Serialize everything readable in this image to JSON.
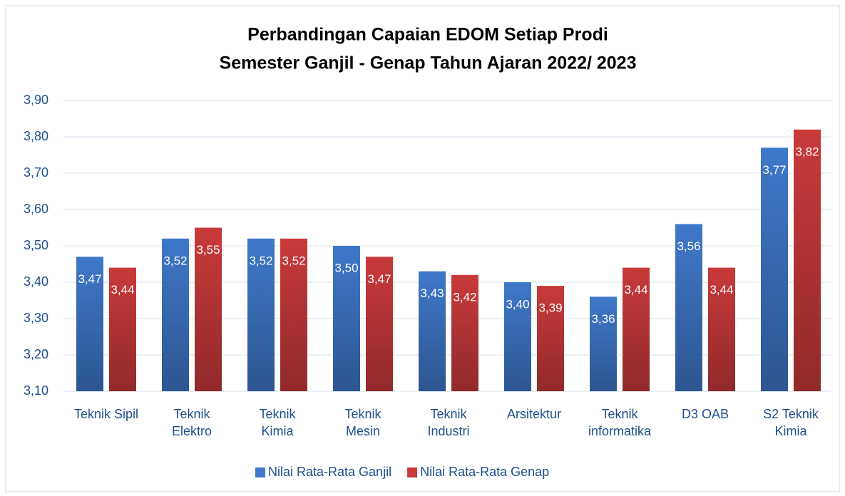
{
  "chart_data": {
    "type": "bar",
    "title": "Perbandingan Capaian EDOM Setiap Prodi",
    "subtitle": "Semester Ganjil - Genap Tahun Ajaran 2022/ 2023",
    "categories": [
      "Teknik Sipil",
      "Teknik\nElektro",
      "Teknik\nKimia",
      "Teknik\nMesin",
      "Teknik\nIndustri",
      "Arsitektur",
      "Teknik\ninformatika",
      "D3 OAB",
      "S2 Teknik\nKimia"
    ],
    "series": [
      {
        "name": "Nilai Rata-Rata Ganjil",
        "color": "#3f78c9",
        "values": [
          3.47,
          3.52,
          3.52,
          3.5,
          3.43,
          3.4,
          3.36,
          3.56,
          3.77
        ],
        "value_labels": [
          "3,47",
          "3,52",
          "3,52",
          "3,50",
          "3,43",
          "3,40",
          "3,36",
          "3,56",
          "3,77"
        ]
      },
      {
        "name": "Nilai Rata-Rata Genap",
        "color": "#c93a3a",
        "values": [
          3.44,
          3.55,
          3.52,
          3.47,
          3.42,
          3.39,
          3.44,
          3.44,
          3.82
        ],
        "value_labels": [
          "3,44",
          "3,55",
          "3,52",
          "3,47",
          "3,42",
          "3,39",
          "3,44",
          "3,44",
          "3,82"
        ]
      }
    ],
    "ylim": [
      3.1,
      3.9
    ],
    "yticks": [
      {
        "value": 3.1,
        "label": "3,10"
      },
      {
        "value": 3.2,
        "label": "3,20"
      },
      {
        "value": 3.3,
        "label": "3,30"
      },
      {
        "value": 3.4,
        "label": "3,40"
      },
      {
        "value": 3.5,
        "label": "3,50"
      },
      {
        "value": 3.6,
        "label": "3,60"
      },
      {
        "value": 3.7,
        "label": "3,70"
      },
      {
        "value": 3.8,
        "label": "3,80"
      },
      {
        "value": 3.9,
        "label": "3,90"
      }
    ],
    "grid": true,
    "legend": "bottom"
  }
}
